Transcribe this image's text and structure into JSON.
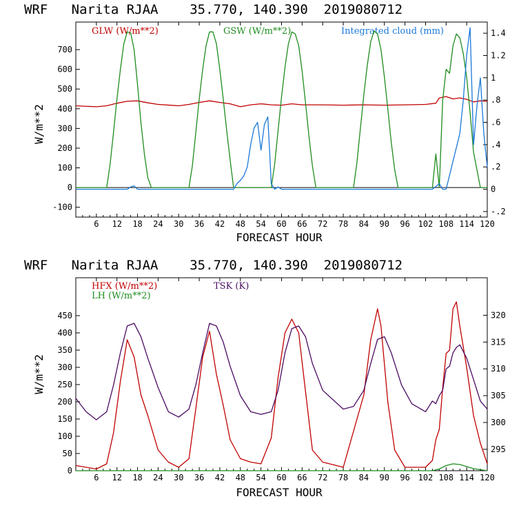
{
  "colors": {
    "glw": "#c00000",
    "gsw": "#1e8c1e",
    "cloud": "#1a78d8",
    "hfx": "#c00000",
    "lh": "#1e8c1e",
    "tsk": "#4a0a60"
  },
  "chart_data": [
    {
      "type": "line",
      "title": "WRF   Narita RJAA    35.770, 140.390  2019080712",
      "xlabel": "FORECAST HOUR",
      "ylabel": "W/m**2",
      "xlim": [
        0,
        120
      ],
      "ylim": [
        -150,
        840
      ],
      "y2lim": [
        -0.25,
        1.5
      ],
      "xticks": [
        6,
        12,
        18,
        24,
        30,
        36,
        42,
        48,
        54,
        60,
        66,
        72,
        78,
        84,
        90,
        96,
        102,
        108,
        114,
        120
      ],
      "yticks": [
        -100,
        0,
        100,
        200,
        300,
        400,
        500,
        600,
        700
      ],
      "y2ticks": [
        -0.2,
        0,
        0.2,
        0.4,
        0.6,
        0.8,
        1.0,
        1.2,
        1.4
      ],
      "y2tick_labels": [
        "-.2",
        "0",
        ".2",
        ".4",
        ".6",
        ".8",
        "1",
        "1.2",
        "1.4"
      ],
      "series": [
        {
          "name": "GLW (W/m**2)",
          "color": "glw",
          "axis": "left",
          "x": [
            0,
            6,
            9,
            12,
            15,
            18,
            21,
            24,
            30,
            33,
            36,
            39,
            42,
            45,
            48,
            51,
            54,
            57,
            60,
            63,
            66,
            72,
            78,
            84,
            90,
            96,
            102,
            105,
            106,
            108,
            110,
            112,
            114,
            116,
            118,
            120
          ],
          "y": [
            415,
            410,
            415,
            428,
            438,
            440,
            430,
            422,
            415,
            422,
            432,
            440,
            432,
            425,
            410,
            420,
            425,
            420,
            418,
            425,
            420,
            420,
            418,
            420,
            418,
            420,
            422,
            428,
            455,
            462,
            450,
            455,
            448,
            435,
            440,
            438
          ]
        },
        {
          "name": "GSW (W/m**2)",
          "color": "gsw",
          "axis": "left",
          "x": [
            0,
            9,
            10,
            11,
            12,
            13,
            14,
            15,
            16,
            17,
            18,
            19,
            20,
            21,
            22,
            33,
            34,
            35,
            36,
            37,
            38,
            39,
            40,
            41,
            42,
            43,
            44,
            45,
            46,
            57,
            58,
            59,
            60,
            61,
            62,
            63,
            64,
            65,
            66,
            67,
            68,
            69,
            70,
            81,
            82,
            83,
            84,
            85,
            86,
            87,
            88,
            89,
            90,
            91,
            92,
            93,
            94,
            104,
            105,
            106,
            107,
            108,
            109,
            110,
            111,
            112,
            113,
            114,
            115,
            116,
            118,
            120
          ],
          "y": [
            0,
            0,
            120,
            280,
            450,
            600,
            730,
            790,
            785,
            700,
            520,
            330,
            170,
            50,
            0,
            0,
            110,
            280,
            450,
            600,
            720,
            790,
            790,
            730,
            600,
            450,
            290,
            140,
            0,
            0,
            120,
            290,
            460,
            610,
            730,
            790,
            780,
            720,
            590,
            430,
            260,
            110,
            0,
            0,
            130,
            300,
            470,
            620,
            740,
            795,
            780,
            700,
            560,
            400,
            230,
            90,
            0,
            0,
            170,
            0,
            440,
            600,
            580,
            720,
            780,
            760,
            680,
            560,
            380,
            180,
            0,
            0
          ]
        },
        {
          "name": "Integrated cloud (mm)",
          "color": "cloud",
          "axis": "right",
          "x": [
            0,
            15,
            16,
            17,
            18,
            46,
            47,
            48,
            49,
            50,
            51,
            52,
            53,
            54,
            55,
            56,
            57,
            58,
            59,
            60,
            70,
            104,
            106,
            107,
            108,
            112,
            113,
            114,
            115,
            116,
            117,
            118,
            119,
            120
          ],
          "y": [
            0,
            0,
            0.02,
            0.03,
            0,
            0,
            0.05,
            0.08,
            0.12,
            0.2,
            0.4,
            0.55,
            0.6,
            0.35,
            0.58,
            0.65,
            0.05,
            0,
            0.02,
            0,
            0,
            0,
            0.05,
            0,
            0,
            0.5,
            0.8,
            1.2,
            1.45,
            0.4,
            0.75,
            1.0,
            0.5,
            0.2
          ]
        }
      ]
    },
    {
      "type": "line",
      "title": "WRF   Narita RJAA    35.770, 140.390  2019080712",
      "xlabel": "FORECAST HOUR",
      "ylabel": "W/m**2",
      "xlim": [
        0,
        120
      ],
      "ylim": [
        0,
        560
      ],
      "y2lim": [
        291,
        327
      ],
      "xticks": [
        6,
        12,
        18,
        24,
        30,
        36,
        42,
        48,
        54,
        60,
        66,
        72,
        78,
        84,
        90,
        96,
        102,
        108,
        114,
        120
      ],
      "yticks": [
        0,
        50,
        100,
        150,
        200,
        250,
        300,
        350,
        400,
        450
      ],
      "y2ticks": [
        295,
        300,
        305,
        310,
        315,
        320
      ],
      "y2tick_labels": [
        "295",
        "300",
        "305",
        "310",
        "315",
        "320"
      ],
      "series": [
        {
          "name": "HFX (W/m**2)",
          "color": "hfx",
          "axis": "left",
          "x": [
            0,
            6,
            9,
            11,
            13,
            15,
            17,
            19,
            21,
            24,
            27,
            30,
            33,
            35,
            37,
            39,
            41,
            43,
            45,
            48,
            51,
            54,
            57,
            59,
            61,
            63,
            65,
            67,
            69,
            72,
            78,
            84,
            86,
            88,
            89,
            91,
            93,
            96,
            102,
            104,
            105,
            106,
            107,
            108,
            109,
            110,
            111,
            112,
            114,
            116,
            118,
            120
          ],
          "y": [
            15,
            5,
            20,
            110,
            260,
            380,
            330,
            220,
            160,
            60,
            25,
            10,
            35,
            180,
            330,
            405,
            280,
            190,
            90,
            35,
            25,
            20,
            95,
            270,
            400,
            440,
            400,
            230,
            60,
            25,
            10,
            220,
            380,
            470,
            420,
            200,
            60,
            10,
            10,
            30,
            90,
            120,
            240,
            340,
            350,
            470,
            490,
            420,
            300,
            160,
            80,
            20
          ]
        },
        {
          "name": "LH (W/m**2)",
          "color": "lh",
          "axis": "left",
          "x": [
            0,
            104,
            106,
            108,
            110,
            112,
            114,
            116,
            118,
            120
          ],
          "y": [
            0,
            0,
            5,
            15,
            20,
            18,
            12,
            6,
            3,
            0
          ]
        },
        {
          "name": "TSK (K)",
          "color": "tsk",
          "axis": "right",
          "x": [
            0,
            3,
            6,
            9,
            11,
            13,
            15,
            17,
            19,
            21,
            24,
            27,
            30,
            33,
            35,
            37,
            39,
            41,
            43,
            45,
            48,
            51,
            54,
            57,
            59,
            61,
            63,
            65,
            67,
            69,
            72,
            78,
            81,
            84,
            86,
            88,
            90,
            92,
            95,
            98,
            102,
            104,
            105,
            106,
            107,
            108,
            109,
            110,
            111,
            112,
            114,
            116,
            118,
            120
          ],
          "y": [
            304.5,
            302,
            300.5,
            302,
            307,
            313,
            318,
            318.5,
            316,
            312,
            306.5,
            302,
            301,
            302.5,
            307,
            313,
            318.5,
            318,
            315,
            310.5,
            305,
            302,
            301.5,
            302,
            306,
            313,
            317.5,
            318,
            316,
            311,
            306,
            302.5,
            303,
            306,
            311,
            315.5,
            316,
            313,
            307,
            303.5,
            302,
            304,
            303.5,
            305,
            306,
            310,
            310.5,
            313,
            314,
            314.5,
            312,
            308,
            304,
            302.5
          ]
        }
      ]
    }
  ]
}
